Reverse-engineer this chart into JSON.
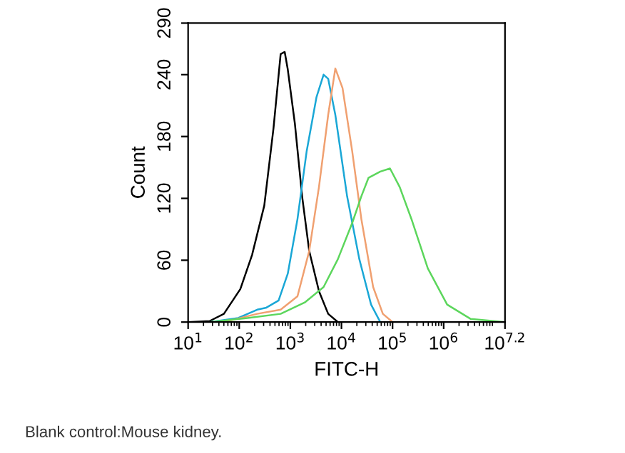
{
  "chart_data": {
    "type": "line",
    "xlabel": "FITC-H",
    "ylabel": "Count",
    "log": "x",
    "xlim": [
      10,
      15848932
    ],
    "ylim": [
      0,
      290
    ],
    "xticks": [
      {
        "value": 10,
        "label": "10$^{1}$"
      },
      {
        "value": 100,
        "label": "10$^{2}$"
      },
      {
        "value": 1000,
        "label": "10$^{3}$"
      },
      {
        "value": 10000,
        "label": "10$^{4}$"
      },
      {
        "value": 100000,
        "label": "10$^{5}$"
      },
      {
        "value": 1000000,
        "label": "10$^{6}$"
      },
      {
        "value": 15848932,
        "label": "10$^{7.2}$"
      }
    ],
    "yticks": [
      0,
      60,
      120,
      180,
      240,
      290
    ],
    "annotations": [
      "Blank control:Mouse kidney."
    ],
    "series": [
      {
        "color": "#000000",
        "x": [
          10,
          26.3,
          50.1,
          105,
          178,
          309,
          468,
          646,
          776,
          891,
          1230,
          1700,
          2340,
          3630,
          5500,
          8510
        ],
        "values": [
          0,
          1,
          8,
          32,
          65,
          113,
          188,
          260,
          262,
          245,
          192,
          122,
          69,
          30,
          8,
          0
        ]
      },
      {
        "color": "#1aa7d6",
        "x": [
          26.3,
          95.5,
          224,
          339,
          589,
          891,
          1380,
          2090,
          3240,
          4470,
          5500,
          7590,
          12900,
          22400,
          38000,
          57500
        ],
        "values": [
          0,
          4,
          12,
          14,
          21,
          47,
          100,
          166,
          218,
          240,
          236,
          201,
          122,
          61,
          17,
          0
        ]
      },
      {
        "color": "#f0a070",
        "x": [
          50.1,
          224,
          646,
          1380,
          2340,
          3630,
          5500,
          7590,
          10500,
          16200,
          24500,
          41700,
          64600,
          100000
        ],
        "values": [
          0,
          8,
          12,
          25,
          69,
          131,
          201,
          246,
          227,
          166,
          100,
          34,
          8,
          0
        ]
      },
      {
        "color": "#5cd65c",
        "x": [
          26.3,
          145,
          646,
          1910,
          4470,
          8510,
          16200,
          24500,
          33900,
          57500,
          89100,
          138000,
          234000,
          490000,
          1170000,
          3390000,
          15800000
        ],
        "values": [
          0,
          4,
          8,
          19,
          34,
          61,
          96,
          122,
          140,
          146,
          149,
          131,
          100,
          52,
          17,
          3,
          0
        ]
      }
    ]
  }
}
